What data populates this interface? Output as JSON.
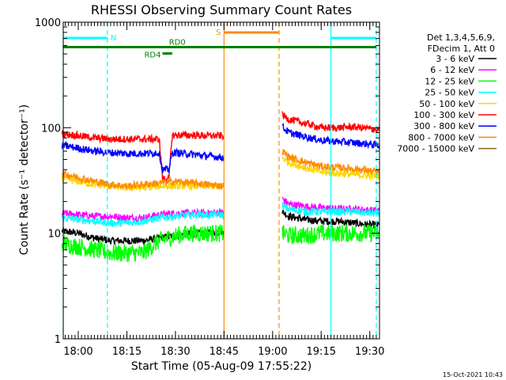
{
  "chart_data": {
    "type": "line",
    "title": "RHESSI Observing Summary Count Rates",
    "xlabel": "Start Time (05-Aug-09 17:55:22)",
    "ylabel": "Count Rate (s⁻¹ detector⁻¹)",
    "y_scale": "log",
    "ylim": [
      1,
      1000
    ],
    "xlim": [
      "17:55:22",
      "19:33:00"
    ],
    "x_ticks": [
      "18:00",
      "18:15",
      "18:30",
      "18:45",
      "19:00",
      "19:15",
      "19:30"
    ],
    "y_ticks": [
      "1",
      "10",
      "100",
      "1000"
    ],
    "grid": false,
    "legend_position": "right",
    "legend_header": [
      "Det 1,3,4,5,6,9,",
      "FDecim 1, Att 0"
    ],
    "data_gaps": [
      [
        "18:45",
        "19:03"
      ]
    ],
    "series": [
      {
        "name": "3 - 6 keV",
        "color": "#000000",
        "x": [
          "17:55",
          "18:00",
          "18:05",
          "18:10",
          "18:15",
          "18:20",
          "18:25",
          "18:30",
          "18:35",
          "18:40",
          "18:45",
          "19:03",
          "19:05",
          "19:10",
          "19:15",
          "19:20",
          "19:25",
          "19:30",
          "19:33"
        ],
        "y": [
          10.5,
          10,
          9,
          8.5,
          8.5,
          8.5,
          9,
          9.5,
          10,
          10,
          10.5,
          16,
          14.5,
          13.5,
          13,
          13,
          12.5,
          12,
          12
        ]
      },
      {
        "name": "6 - 12 keV",
        "color": "#ff00ff",
        "x": [
          "17:55",
          "18:00",
          "18:05",
          "18:10",
          "18:15",
          "18:20",
          "18:25",
          "18:30",
          "18:35",
          "18:40",
          "18:45",
          "19:03",
          "19:05",
          "19:10",
          "19:15",
          "19:20",
          "19:25",
          "19:30",
          "19:33"
        ],
        "y": [
          15.5,
          15,
          14.5,
          14.5,
          14,
          14,
          15,
          15.5,
          15.5,
          15.5,
          16,
          21,
          19,
          18,
          17.5,
          17,
          17,
          16.5,
          16.5
        ]
      },
      {
        "name": "12 - 25 keV",
        "color": "#00ff00",
        "x": [
          "17:55",
          "18:00",
          "18:05",
          "18:10",
          "18:15",
          "18:20",
          "18:25",
          "18:30",
          "18:35",
          "18:40",
          "18:45",
          "19:03",
          "19:05",
          "19:10",
          "19:15",
          "19:20",
          "19:25",
          "19:30",
          "19:33"
        ],
        "y": [
          8,
          7.5,
          7,
          6.5,
          6.5,
          6.5,
          8.5,
          9.5,
          10,
          10,
          10,
          10,
          9.5,
          9.5,
          10,
          10,
          10,
          10,
          10
        ]
      },
      {
        "name": "25 - 50 keV",
        "color": "#00ffff",
        "x": [
          "17:55",
          "18:00",
          "18:05",
          "18:10",
          "18:15",
          "18:20",
          "18:25",
          "18:30",
          "18:35",
          "18:40",
          "18:45",
          "19:03",
          "19:05",
          "19:10",
          "19:15",
          "19:20",
          "19:25",
          "19:30",
          "19:33"
        ],
        "y": [
          14,
          13.5,
          13,
          12.5,
          12.5,
          13,
          14,
          14.5,
          15,
          15,
          15,
          18,
          17,
          16,
          16,
          16,
          16,
          15.5,
          15.5
        ]
      },
      {
        "name": "50 - 100 keV",
        "color": "#ffd700",
        "x": [
          "17:55",
          "18:00",
          "18:05",
          "18:10",
          "18:15",
          "18:20",
          "18:25",
          "18:30",
          "18:35",
          "18:40",
          "18:45",
          "19:03",
          "19:05",
          "19:10",
          "19:15",
          "19:20",
          "19:25",
          "19:30",
          "19:33"
        ],
        "y": [
          33,
          31,
          29,
          28,
          27,
          27,
          28,
          28,
          28,
          28,
          28,
          52,
          47,
          42,
          38,
          37,
          36,
          35,
          35
        ]
      },
      {
        "name": "100 - 300 keV",
        "color": "#ff0000",
        "x": [
          "17:55",
          "18:00",
          "18:05",
          "18:10",
          "18:15",
          "18:20",
          "18:25",
          "18:26",
          "18:27",
          "18:28",
          "18:29",
          "18:30",
          "18:35",
          "18:40",
          "18:45",
          "19:03",
          "19:05",
          "19:10",
          "19:15",
          "19:20",
          "19:25",
          "19:30",
          "19:33"
        ],
        "y": [
          88,
          84,
          80,
          78,
          78,
          78,
          78,
          33,
          33,
          33,
          85,
          85,
          85,
          84,
          84,
          132,
          120,
          110,
          100,
          100,
          102,
          98,
          95
        ]
      },
      {
        "name": "300 - 800 keV",
        "color": "#0000ff",
        "x": [
          "17:55",
          "18:00",
          "18:05",
          "18:10",
          "18:15",
          "18:20",
          "18:25",
          "18:26",
          "18:27",
          "18:28",
          "18:29",
          "18:30",
          "18:35",
          "18:40",
          "18:45",
          "19:03",
          "19:05",
          "19:10",
          "19:15",
          "19:20",
          "19:25",
          "19:30",
          "19:33"
        ],
        "y": [
          68,
          64,
          60,
          58,
          57,
          57,
          58,
          40,
          40,
          40,
          58,
          58,
          56,
          54,
          52,
          102,
          90,
          82,
          76,
          74,
          72,
          70,
          68
        ]
      },
      {
        "name": "800 - 7000 keV",
        "color": "#ff8c00",
        "x": [
          "17:55",
          "18:00",
          "18:05",
          "18:10",
          "18:15",
          "18:20",
          "18:25",
          "18:30",
          "18:35",
          "18:40",
          "18:45",
          "19:03",
          "19:05",
          "19:10",
          "19:15",
          "19:20",
          "19:25",
          "19:30",
          "19:33"
        ],
        "y": [
          37,
          34,
          31,
          29,
          28,
          29,
          30,
          31,
          30,
          29,
          28,
          60,
          53,
          47,
          43,
          42,
          41,
          39,
          38
        ]
      },
      {
        "name": "7000 - 15000 keV",
        "color": "#8b6914",
        "x": [],
        "y": []
      }
    ],
    "annotations": {
      "night": {
        "label": "N",
        "color": "#00ffff",
        "intervals": [
          [
            "17:55:22",
            "18:09"
          ],
          [
            "19:18",
            "19:32"
          ]
        ]
      },
      "saa": {
        "label": "S",
        "color": "#ff8c00",
        "intervals": [
          [
            "18:45",
            "19:02"
          ]
        ]
      },
      "decimation": {
        "color": "#008000",
        "bars": [
          {
            "label": "RD0",
            "start": "17:55:22",
            "end": "19:32",
            "y": 580
          },
          {
            "label": "RD4",
            "start": "18:26",
            "end": "18:29",
            "y": 505
          }
        ]
      }
    }
  },
  "footer": {
    "timestamp": "15-Oct-2021 10:43"
  }
}
